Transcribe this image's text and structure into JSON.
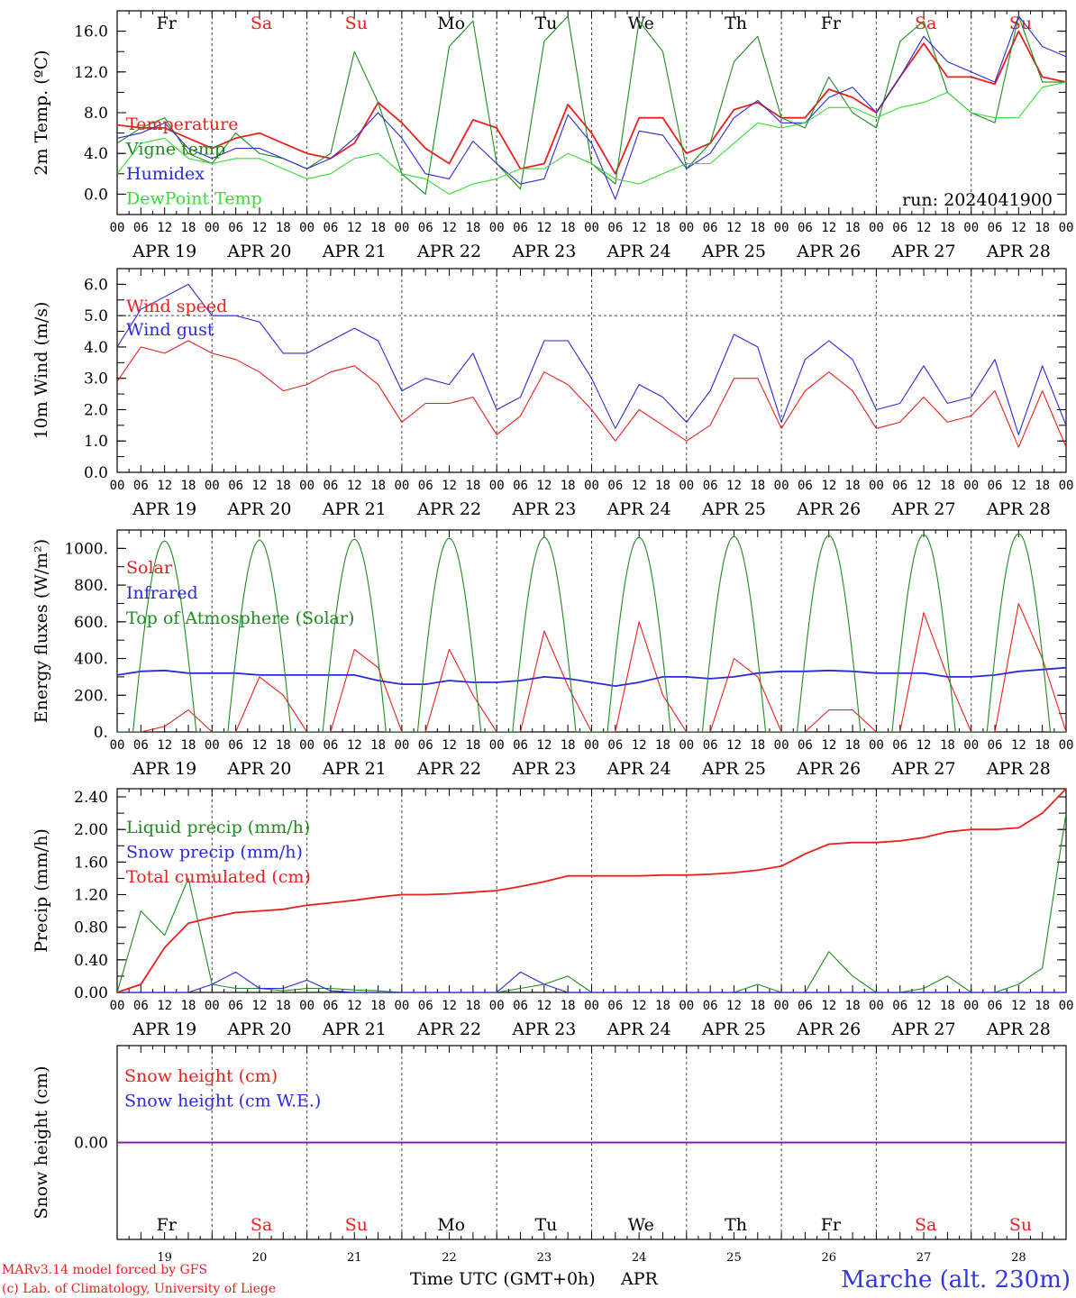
{
  "colors": {
    "red": "#e8201e",
    "dark_green": "#1f8a1f",
    "blue": "#2a2ad8",
    "light_green": "#33dd33",
    "purple": "#7a1fa2",
    "site_blue": "#3333ee"
  },
  "run_label": "run: 2024041900",
  "footer": {
    "model": "MARv3.14 model forced by GFS",
    "copyright": "(c) Lab. of Climatology, University of Liege",
    "xlabel": "Time UTC (GMT+0h)",
    "month": "APR",
    "site": "Marche (alt. 230m)"
  },
  "days": {
    "weekday_top": [
      "Fr",
      "Sa",
      "Su",
      "Mo",
      "Tu",
      "We",
      "Th",
      "Fr",
      "Sa",
      "Su"
    ],
    "weekend": [
      false,
      true,
      true,
      false,
      false,
      false,
      false,
      false,
      true,
      true
    ],
    "date_labels": [
      "APR 19",
      "APR 20",
      "APR 21",
      "APR 22",
      "APR 23",
      "APR 24",
      "APR 25",
      "APR 26",
      "APR 27",
      "APR 28"
    ],
    "day_numbers": [
      "19",
      "20",
      "21",
      "22",
      "23",
      "24",
      "25",
      "26",
      "27",
      "28"
    ],
    "hour_ticks": [
      "00",
      "06",
      "12",
      "18"
    ],
    "end_tick": "00"
  },
  "chart_data": [
    {
      "type": "line",
      "id": "temp",
      "ylabel": "2m Temp. (ºC)",
      "ylim": [
        -2.0,
        18.0
      ],
      "yticks": [
        "0.0",
        "4.0",
        "8.0",
        "12.0",
        "16.0"
      ],
      "ytick_values": [
        0,
        4,
        8,
        12,
        16
      ],
      "hours_per_point": 6,
      "series": [
        {
          "name": "Temperature",
          "color_key": "red",
          "values": [
            6.8,
            6.5,
            6.5,
            5.5,
            4.5,
            5.5,
            6.0,
            5.0,
            4.0,
            3.5,
            5.0,
            9.0,
            7.0,
            4.5,
            3.0,
            7.3,
            6.5,
            2.5,
            3.0,
            8.8,
            6.0,
            2.0,
            7.5,
            7.5,
            4.0,
            5.0,
            8.3,
            9.0,
            7.5,
            7.5,
            10.3,
            9.5,
            8.0,
            11.5,
            14.8,
            11.5,
            11.5,
            10.8,
            16.0,
            11.5,
            11.0
          ]
        },
        {
          "name": "Vigne temp",
          "color_key": "dark_green",
          "values": [
            5.0,
            6.5,
            7.5,
            4.0,
            3.0,
            6.0,
            4.0,
            3.5,
            2.5,
            4.0,
            14.0,
            9.0,
            2.0,
            0.0,
            14.5,
            17.0,
            3.0,
            0.5,
            15.0,
            17.5,
            3.0,
            1.0,
            17.0,
            14.0,
            2.5,
            5.0,
            13.0,
            15.5,
            7.5,
            6.5,
            11.5,
            8.0,
            6.5,
            15.0,
            17.0,
            10.0,
            8.0,
            7.0,
            17.5,
            11.0,
            11.0
          ]
        },
        {
          "name": "Humidex",
          "color_key": "blue",
          "values": [
            5.5,
            6.0,
            7.0,
            4.5,
            3.5,
            4.5,
            4.5,
            3.5,
            2.5,
            3.5,
            5.5,
            8.0,
            5.5,
            2.0,
            1.5,
            5.2,
            3.0,
            1.0,
            1.5,
            7.8,
            5.0,
            -0.5,
            6.2,
            5.8,
            2.5,
            4.0,
            7.5,
            9.2,
            7.0,
            7.0,
            9.5,
            10.5,
            8.0,
            11.5,
            15.5,
            13.0,
            12.0,
            11.0,
            17.5,
            14.5,
            13.5
          ]
        },
        {
          "name": "DewPoint Temp",
          "color_key": "light_green",
          "values": [
            2.0,
            5.0,
            5.5,
            3.5,
            3.0,
            3.5,
            3.5,
            2.5,
            1.5,
            2.0,
            3.5,
            4.0,
            2.0,
            1.5,
            0.0,
            1.0,
            1.5,
            2.5,
            2.5,
            4.0,
            3.0,
            1.5,
            1.0,
            2.0,
            3.0,
            3.0,
            5.0,
            7.0,
            6.5,
            7.0,
            8.5,
            8.5,
            7.5,
            8.5,
            9.0,
            10.0,
            8.0,
            7.5,
            7.5,
            10.5,
            11.0
          ]
        }
      ]
    },
    {
      "type": "line",
      "id": "wind",
      "ylabel": "10m Wind (m/s)",
      "ylim": [
        0.0,
        6.5
      ],
      "yticks": [
        "0.0",
        "1.0",
        "2.0",
        "3.0",
        "4.0",
        "5.0",
        "6.0"
      ],
      "ytick_values": [
        0,
        1,
        2,
        3,
        4,
        5,
        6
      ],
      "hours_per_point": 6,
      "series": [
        {
          "name": "Wind speed",
          "color_key": "red",
          "values": [
            2.9,
            4.0,
            3.8,
            4.2,
            3.8,
            3.6,
            3.2,
            2.6,
            2.8,
            3.2,
            3.4,
            2.8,
            1.6,
            2.2,
            2.2,
            2.4,
            1.2,
            1.8,
            3.2,
            2.8,
            2.0,
            1.0,
            2.0,
            1.5,
            1.0,
            1.5,
            3.0,
            3.0,
            1.4,
            2.6,
            3.2,
            2.6,
            1.4,
            1.6,
            2.4,
            1.6,
            1.8,
            2.6,
            0.8,
            2.6,
            0.8
          ]
        },
        {
          "name": "Wind gust",
          "color_key": "blue",
          "values": [
            4.0,
            5.2,
            5.6,
            6.0,
            5.0,
            5.0,
            4.8,
            3.8,
            3.8,
            4.2,
            4.6,
            4.2,
            2.6,
            3.0,
            2.8,
            3.8,
            2.0,
            2.4,
            4.2,
            4.2,
            3.0,
            1.4,
            2.8,
            2.4,
            1.6,
            2.6,
            4.4,
            4.0,
            1.6,
            3.6,
            4.2,
            3.6,
            2.0,
            2.2,
            3.4,
            2.2,
            2.4,
            3.6,
            1.2,
            3.4,
            1.5
          ]
        }
      ]
    },
    {
      "type": "line",
      "id": "energy",
      "ylabel": "Energy fluxes (W/m²)",
      "ylim": [
        0,
        1100
      ],
      "yticks": [
        "0.",
        "200.",
        "400.",
        "600.",
        "800.",
        "1000."
      ],
      "ytick_values": [
        0,
        200,
        400,
        600,
        800,
        1000
      ],
      "hours_per_point": 6,
      "series": [
        {
          "name": "Solar",
          "color_key": "red",
          "values": [
            0,
            0,
            30,
            120,
            0,
            0,
            300,
            200,
            0,
            0,
            450,
            350,
            0,
            0,
            450,
            200,
            0,
            0,
            550,
            250,
            0,
            0,
            600,
            200,
            0,
            0,
            400,
            300,
            0,
            0,
            120,
            120,
            0,
            0,
            650,
            300,
            0,
            0,
            700,
            400,
            0
          ]
        },
        {
          "name": "Infrared",
          "color_key": "blue",
          "values": [
            310,
            330,
            335,
            320,
            320,
            320,
            310,
            310,
            310,
            310,
            310,
            280,
            260,
            260,
            280,
            270,
            270,
            280,
            300,
            290,
            270,
            250,
            270,
            300,
            300,
            290,
            300,
            320,
            330,
            330,
            335,
            330,
            320,
            320,
            320,
            300,
            300,
            310,
            330,
            340,
            350
          ]
        },
        {
          "name": "Top of Atmosphere (Solar)",
          "color_key": "dark_green",
          "generator": "daytime arc peaking about 1050 W/m² at 12 UTC each day",
          "peaks": [
            1040,
            1045,
            1050,
            1055,
            1060,
            1060,
            1065,
            1070,
            1075,
            1080
          ]
        }
      ]
    },
    {
      "type": "line",
      "id": "precip",
      "ylabel": "Precip (mm/h)",
      "ylim": [
        0.0,
        2.5
      ],
      "yticks": [
        "0.00",
        "0.40",
        "0.80",
        "1.20",
        "1.60",
        "2.00",
        "2.40"
      ],
      "ytick_values": [
        0,
        0.4,
        0.8,
        1.2,
        1.6,
        2.0,
        2.4
      ],
      "hours_per_point": 6,
      "series": [
        {
          "name": "Liquid precip (mm/h)",
          "color_key": "dark_green",
          "values": [
            0,
            1.0,
            0.7,
            1.4,
            0.1,
            0.05,
            0.05,
            0.02,
            0.05,
            0.05,
            0.03,
            0.02,
            0,
            0,
            0,
            0,
            0,
            0.05,
            0.1,
            0.2,
            0,
            0,
            0,
            0,
            0,
            0,
            0,
            0.1,
            0,
            0,
            0.5,
            0.2,
            0,
            0,
            0.05,
            0.2,
            0,
            0,
            0.1,
            0.3,
            2.2
          ]
        },
        {
          "name": "Snow precip (mm/h)",
          "color_key": "blue",
          "values": [
            0,
            0,
            0,
            0,
            0.1,
            0.25,
            0.05,
            0.05,
            0.15,
            0.02,
            0,
            0,
            0,
            0,
            0,
            0,
            0,
            0.25,
            0.1,
            0,
            0,
            0,
            0,
            0,
            0,
            0,
            0,
            0,
            0,
            0,
            0,
            0,
            0,
            0,
            0,
            0,
            0,
            0,
            0,
            0,
            0
          ]
        },
        {
          "name": "Total cumulated (cm)",
          "color_key": "red",
          "values": [
            0,
            0.1,
            0.55,
            0.85,
            0.92,
            0.98,
            1.0,
            1.02,
            1.07,
            1.1,
            1.13,
            1.17,
            1.2,
            1.2,
            1.21,
            1.23,
            1.25,
            1.3,
            1.36,
            1.43,
            1.43,
            1.43,
            1.43,
            1.44,
            1.44,
            1.45,
            1.47,
            1.5,
            1.55,
            1.7,
            1.82,
            1.84,
            1.84,
            1.86,
            1.9,
            1.97,
            2.0,
            2.0,
            2.02,
            2.2,
            2.5
          ]
        }
      ]
    },
    {
      "type": "line",
      "id": "snow",
      "ylabel": "Snow height (cm)",
      "ylim": [
        -1.0,
        1.0
      ],
      "yticks": [
        "0.00"
      ],
      "ytick_values": [
        0
      ],
      "hours_per_point": 6,
      "series": [
        {
          "name": "Snow height (cm)",
          "color_key": "red",
          "values": [
            0,
            0
          ]
        },
        {
          "name": "Snow height (cm W.E.)",
          "color_key": "blue",
          "values": [
            0,
            0
          ]
        }
      ]
    }
  ]
}
